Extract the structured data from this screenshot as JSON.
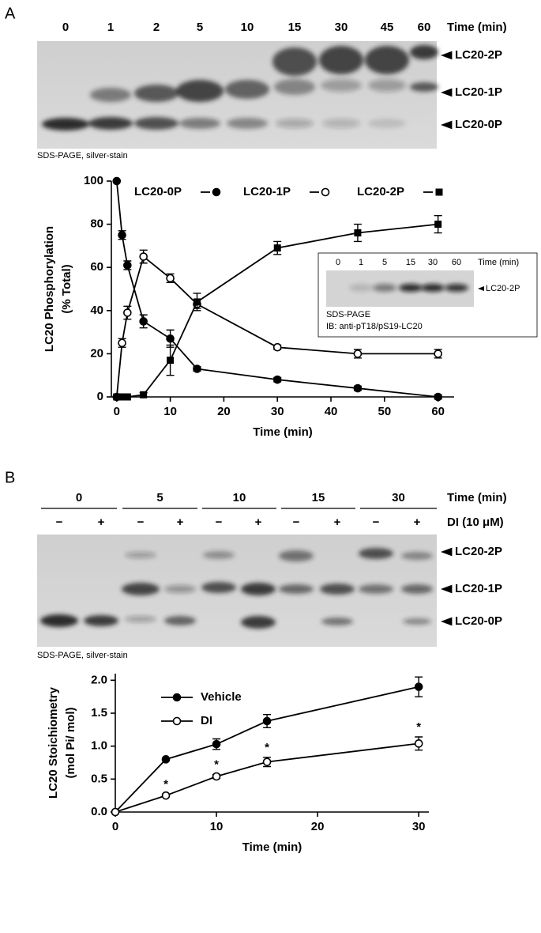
{
  "panels": [
    {
      "letter": "A",
      "gel": {
        "lanes": [
          "0",
          "1",
          "2",
          "5",
          "10",
          "15",
          "30",
          "45",
          "60"
        ],
        "lane_title": "Time (min)",
        "bands": [
          "LC20-2P",
          "LC20-1P",
          "LC20-0P"
        ],
        "caption": "SDS-PAGE, silver-stain"
      },
      "inset": {
        "lanes": [
          "0",
          "1",
          "5",
          "15",
          "30",
          "60"
        ],
        "lane_title": "Time (min)",
        "band": "LC20-2P",
        "caption": [
          "SDS-PAGE",
          "IB: anti-pT18/pS19-LC20"
        ]
      }
    },
    {
      "letter": "B",
      "gel": {
        "groups": [
          "0",
          "5",
          "10",
          "15",
          "30"
        ],
        "group_title": "Time (min)",
        "treatments": [
          "−",
          "+"
        ],
        "treatment_title": "DI (10 μM)",
        "bands": [
          "LC20-2P",
          "LC20-1P",
          "LC20-0P"
        ],
        "caption": "SDS-PAGE, silver-stain"
      }
    }
  ],
  "chart_data": [
    {
      "type": "line",
      "x_label": "Time (min)",
      "y_label": [
        "LC20 Phosphorylation",
        "(% Total)"
      ],
      "x": [
        0,
        1,
        2,
        5,
        10,
        15,
        30,
        45,
        60
      ],
      "xlim": [
        -1,
        63
      ],
      "xticks": [
        0,
        10,
        20,
        30,
        40,
        50,
        60
      ],
      "ylim": [
        0,
        100
      ],
      "yticks": [
        0,
        20,
        40,
        60,
        80,
        100
      ],
      "legend": "top",
      "series": [
        {
          "name": "LC20-0P",
          "marker": "filled-circle",
          "color": "#000000",
          "values": [
            100,
            75,
            61,
            35,
            27,
            13,
            8,
            4,
            0
          ],
          "errors": [
            0,
            2,
            2,
            3,
            4,
            1,
            1,
            1,
            1
          ]
        },
        {
          "name": "LC20-1P",
          "marker": "open-circle",
          "color": "#000000",
          "values": [
            0,
            25,
            39,
            65,
            55,
            43,
            23,
            20,
            20
          ],
          "errors": [
            0,
            2,
            3,
            3,
            2,
            2,
            1,
            2,
            2
          ]
        },
        {
          "name": "LC20-2P",
          "marker": "square",
          "color": "#000000",
          "values": [
            0,
            0,
            0,
            1,
            17,
            44,
            69,
            76,
            80
          ],
          "errors": [
            0,
            0,
            0,
            1,
            7,
            4,
            3,
            4,
            4
          ]
        }
      ]
    },
    {
      "type": "line",
      "x_label": "Time (min)",
      "y_label": [
        "LC20 Stoichiometry",
        "(mol Pi/ mol)"
      ],
      "x": [
        0,
        5,
        10,
        15,
        30
      ],
      "xlim": [
        0,
        31
      ],
      "xticks": [
        0,
        10,
        20,
        30
      ],
      "ylim": [
        0,
        2.1
      ],
      "yticks": [
        {
          "value": 0,
          "label": "0.0"
        },
        {
          "value": 0.5,
          "label": "0.5"
        },
        {
          "value": 1,
          "label": "1.0"
        },
        {
          "value": 1.5,
          "label": "1.5"
        },
        {
          "value": 2,
          "label": "2.0"
        }
      ],
      "legend": "upper left",
      "series": [
        {
          "name": "Vehicle",
          "marker": "filled-circle",
          "color": "#000000",
          "values": [
            0,
            0.8,
            1.03,
            1.38,
            1.9
          ],
          "errors": [
            0,
            0.02,
            0.08,
            0.1,
            0.15
          ]
        },
        {
          "name": "DI",
          "marker": "open-circle",
          "color": "#000000",
          "values": [
            0,
            0.25,
            0.54,
            0.76,
            1.04
          ],
          "errors": [
            0,
            0.02,
            0.03,
            0.07,
            0.1
          ]
        }
      ],
      "annotations": [
        {
          "x": 5,
          "text": "*"
        },
        {
          "x": 10,
          "text": "*"
        },
        {
          "x": 15,
          "text": "*"
        },
        {
          "x": 30,
          "text": "*"
        }
      ]
    }
  ]
}
